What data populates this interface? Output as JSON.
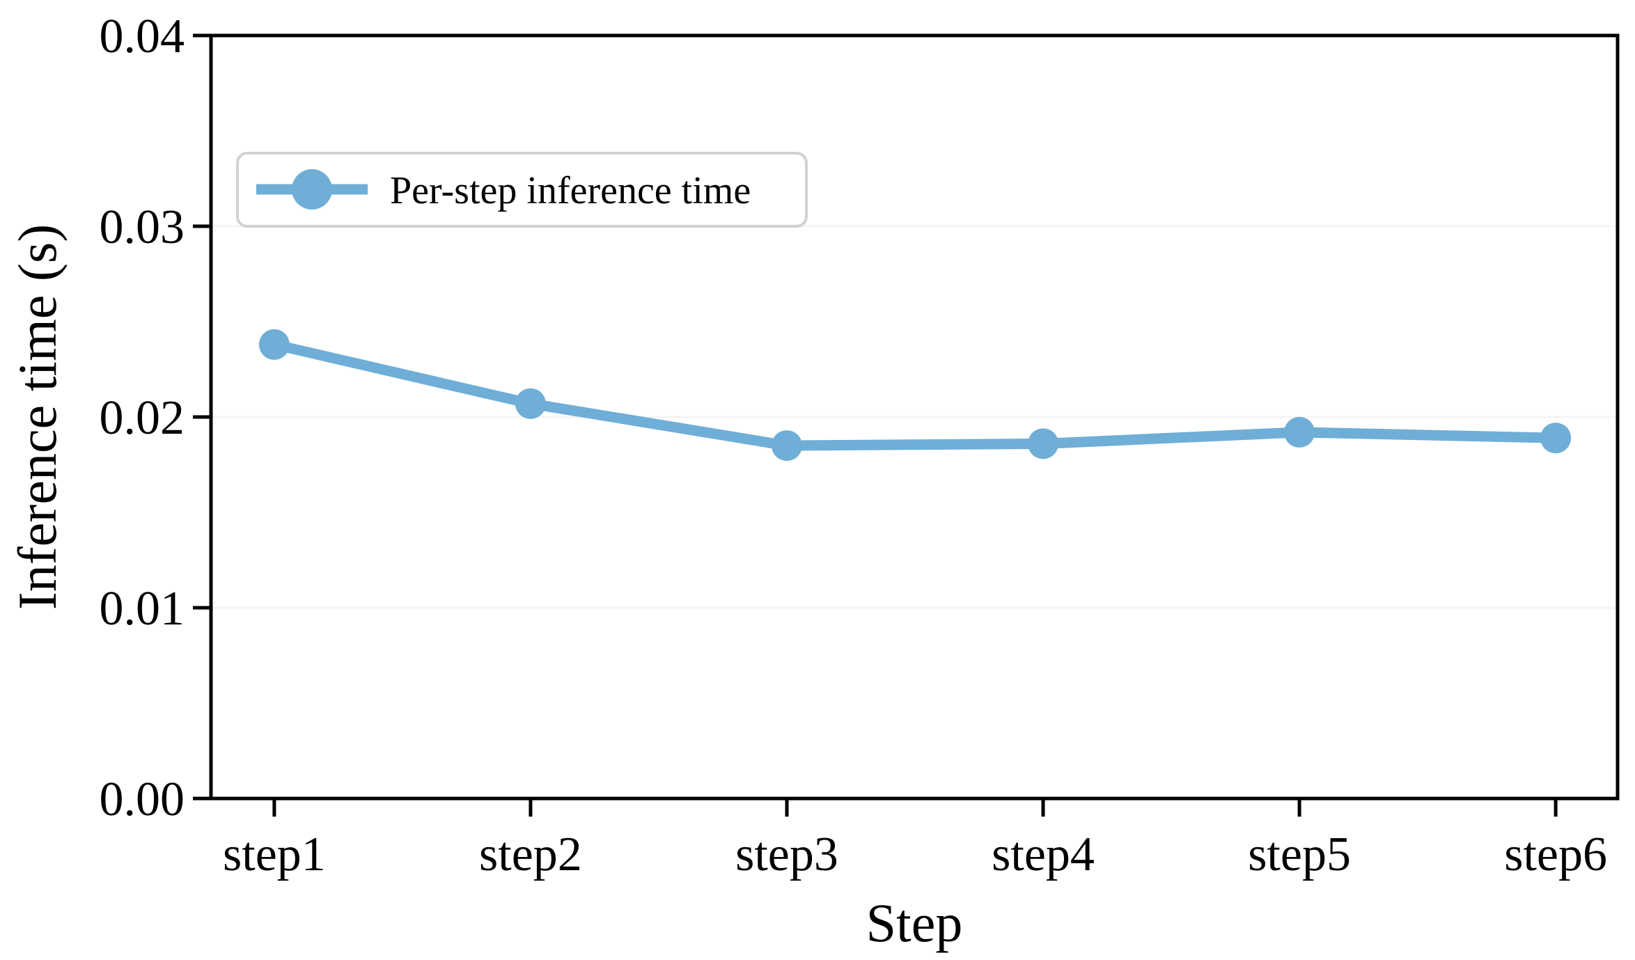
{
  "chart_data": {
    "type": "line",
    "title": "",
    "categories": [
      "step1",
      "step2",
      "step3",
      "step4",
      "step5",
      "step6"
    ],
    "series": [
      {
        "name": "Per-step inference time",
        "values": [
          0.0238,
          0.0207,
          0.0185,
          0.0186,
          0.0192,
          0.0189
        ],
        "color": "#6FAED6",
        "marker": "circle"
      }
    ],
    "xlabel": "Step",
    "ylabel": "Inference time (s)",
    "ylim": [
      0,
      0.04
    ],
    "yticks": [
      0,
      0.01,
      0.02,
      0.03,
      0.04
    ],
    "ytick_labels": [
      "0.00",
      "0.01",
      "0.02",
      "0.03",
      "0.04"
    ],
    "legend": {
      "position": "upper left",
      "entries": [
        "Per-step inference time"
      ]
    },
    "grid": "faint horizontal gridlines at y ticks",
    "colors": {
      "line": "#6FAED6",
      "axis": "#000000",
      "gridline": "#f4f4f6",
      "legend_border": "#d2d2d2",
      "background": "#ffffff"
    }
  }
}
